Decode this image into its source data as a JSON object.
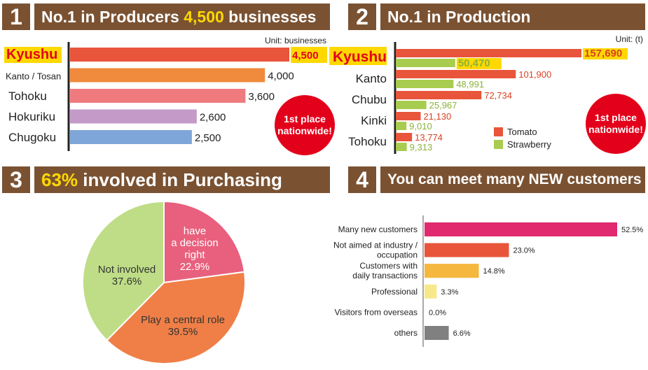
{
  "panels": {
    "p1": {
      "num": "1",
      "title_pre": "No.1 in Producers ",
      "title_hl": "4,500",
      "title_post": " businesses"
    },
    "p2": {
      "num": "2",
      "title": "No.1 in Production"
    },
    "p3": {
      "num": "3",
      "title_hl": "63%",
      "title_post": " involved in Purchasing"
    },
    "p4": {
      "num": "4",
      "title": "You can meet many NEW customers"
    }
  },
  "badges": {
    "line1": "1st place",
    "line2": "nationwide!"
  },
  "colors": {
    "header": "#7a5232",
    "highlight": "#ffd800",
    "badge": "#e3001b"
  },
  "chart_data": [
    {
      "type": "bar",
      "orientation": "horizontal",
      "unit_label": "Unit: businesses",
      "categories": [
        "Kyushu",
        "Kanto / Tosan",
        "Tohoku",
        "Hokuriku",
        "Chugoku"
      ],
      "values": [
        4500,
        4000,
        3600,
        2600,
        2500
      ],
      "value_labels": [
        "4,500",
        "4,000",
        "3,600",
        "2,600",
        "2,500"
      ],
      "colors": [
        "#e8553a",
        "#f08a3c",
        "#ef7b7f",
        "#c49ac8",
        "#7fa6d8"
      ],
      "highlight_category": "Kyushu"
    },
    {
      "type": "bar",
      "orientation": "horizontal",
      "unit_label": "Unit: (t)",
      "categories": [
        "Kyushu",
        "Kanto",
        "Chubu",
        "Kinki",
        "Tohoku"
      ],
      "series": [
        {
          "name": "Tomato",
          "color": "#e8553a",
          "values": [
            157690,
            101900,
            72734,
            21130,
            13774
          ],
          "labels": [
            "157,690",
            "101,900",
            "72,734",
            "21,130",
            "13,774"
          ]
        },
        {
          "name": "Strawberry",
          "color": "#a8cc4f",
          "values": [
            50470,
            48991,
            25967,
            9010,
            9313
          ],
          "labels": [
            "50,470",
            "48,991",
            "25,967",
            "9,010",
            "9,313"
          ]
        }
      ],
      "highlight_category": "Kyushu"
    },
    {
      "type": "pie",
      "slices": [
        {
          "label": "have\na decision\nright",
          "value": 22.9,
          "value_label": "22.9%",
          "color": "#e8607d"
        },
        {
          "label": "Play a central role",
          "value": 39.5,
          "value_label": "39.5%",
          "color": "#ef7f47"
        },
        {
          "label": "Not involved",
          "value": 37.6,
          "value_label": "37.6%",
          "color": "#bedd86"
        }
      ]
    },
    {
      "type": "bar",
      "orientation": "horizontal",
      "categories": [
        "Many new customers",
        "Not aimed at industry /\noccupation",
        "Customers with\ndaily transactions",
        "Professional",
        "Visitors from overseas",
        "others"
      ],
      "values": [
        52.5,
        23.0,
        14.8,
        3.3,
        0.0,
        6.6
      ],
      "value_labels": [
        "52.5%",
        "23.0%",
        "14.8%",
        "3.3%",
        "0.0%",
        "6.6%"
      ],
      "colors": [
        "#e0296e",
        "#e8553a",
        "#f5b73d",
        "#f7e98a",
        "#cccccc",
        "#808080"
      ]
    }
  ]
}
